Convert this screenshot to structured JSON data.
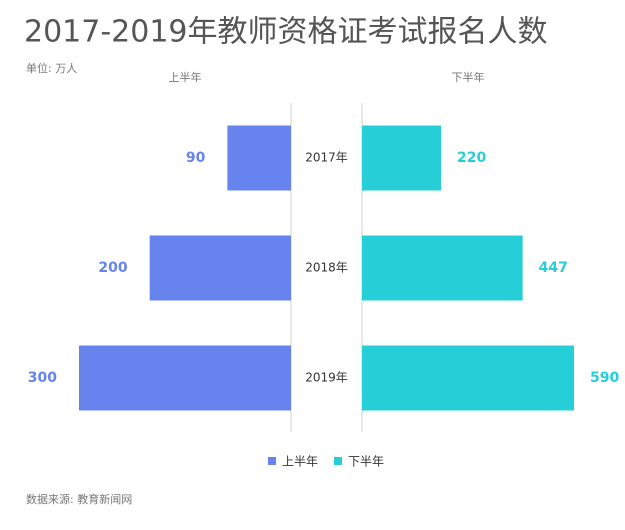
{
  "chart_data": {
    "type": "butterfly",
    "title": "2017-2019年教师资格证考试报名人数",
    "subtitle": "单位: 万人",
    "source": "数据来源: 教育新闻网",
    "categories": [
      "2017年",
      "2018年",
      "2019年"
    ],
    "series": [
      {
        "name": "上半年",
        "color": "#6683ee",
        "values": [
          90,
          200,
          300
        ],
        "xlim": [
          0,
          300
        ]
      },
      {
        "name": "下半年",
        "color": "#26cfd8",
        "values": [
          220,
          447,
          590
        ],
        "xlim": [
          0,
          590
        ]
      }
    ]
  }
}
